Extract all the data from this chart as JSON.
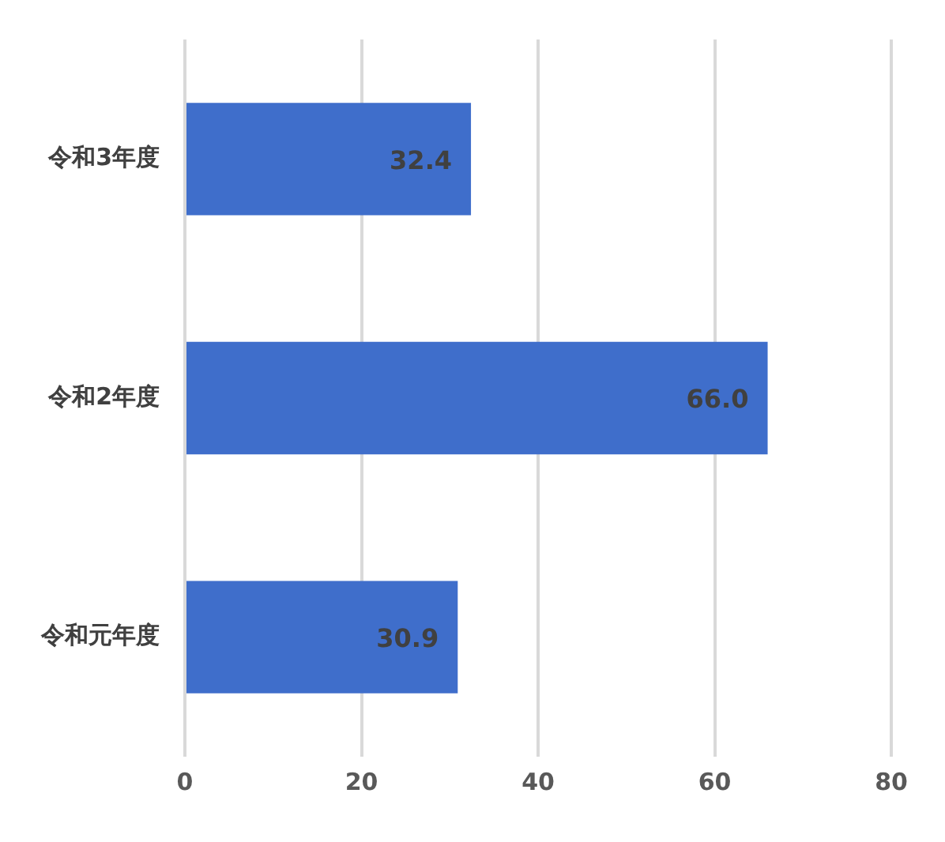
{
  "chart_data": {
    "type": "bar",
    "orientation": "horizontal",
    "categories": [
      "令和3年度",
      "令和2年度",
      "令和元年度"
    ],
    "values": [
      32.4,
      66.0,
      30.9
    ],
    "value_labels": [
      "32.4",
      "66.0",
      "30.9"
    ],
    "color": "#3f6ecb",
    "xlim": [
      0,
      80
    ],
    "xticks": [
      0,
      20,
      40,
      60,
      80
    ],
    "grid": "x"
  }
}
